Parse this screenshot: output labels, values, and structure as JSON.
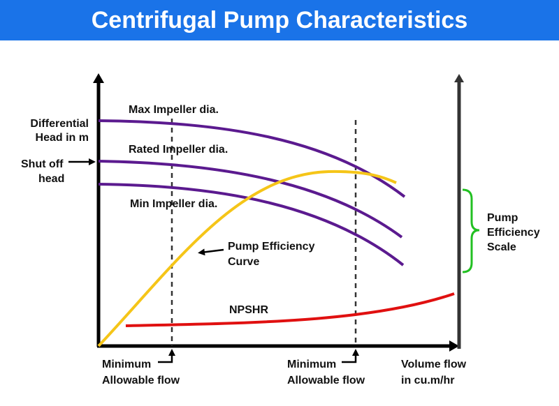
{
  "title": "Centrifugal Pump Characteristics",
  "labels": {
    "y_axis": [
      "Differential",
      "Head in m"
    ],
    "shutoff": [
      "Shut off",
      "head"
    ],
    "max_impeller": "Max Impeller dia.",
    "rated_impeller": "Rated Impeller dia.",
    "min_impeller": "Min Impeller dia.",
    "efficiency_curve": [
      "Pump Efficiency",
      "Curve"
    ],
    "npshr": "NPSHR",
    "min_flow_left": [
      "Minimum",
      "Allowable flow"
    ],
    "min_flow_right": [
      "Minimum",
      "Allowable flow"
    ],
    "x_axis": [
      "Volume flow",
      "in cu.m/hr"
    ],
    "efficiency_scale": [
      "Pump",
      "Efficiency",
      "Scale"
    ]
  },
  "colors": {
    "title_bar": "#1a73e8",
    "impeller_curves": "#5b1a8f",
    "efficiency_curve": "#f5c518",
    "npshr_curve": "#e01010",
    "scale_bracket": "#22c022",
    "axes": "#000000"
  }
}
